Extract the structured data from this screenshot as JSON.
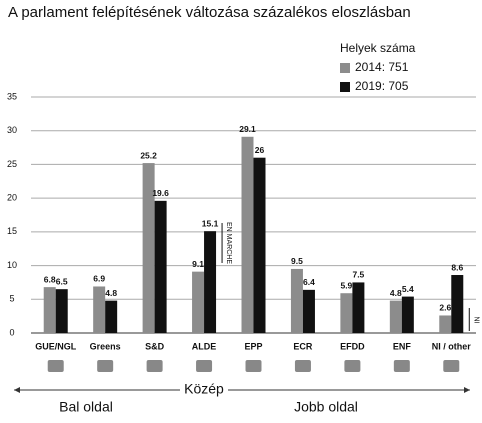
{
  "chart_data": {
    "type": "bar",
    "title": "A parlament felépítésének változása százalékos eloszlásban",
    "legend_title": "Helyek száma",
    "categories": [
      "GUE/NGL",
      "Greens",
      "S&D",
      "ALDE",
      "EPP",
      "ECR",
      "EFDD",
      "ENF",
      "NI / other"
    ],
    "series": [
      {
        "name": "2014: 751",
        "color": "#8c8c8c",
        "values": [
          6.8,
          6.9,
          25.2,
          9.1,
          29.1,
          9.5,
          5.9,
          4.8,
          2.6
        ]
      },
      {
        "name": "2019: 705",
        "color": "#111111",
        "values": [
          6.5,
          4.8,
          19.6,
          15.1,
          26,
          6.4,
          7.5,
          5.4,
          8.6
        ]
      }
    ],
    "ylim": [
      0,
      35
    ],
    "yticks": [
      0,
      5,
      10,
      15,
      20,
      25,
      30,
      35
    ],
    "grid": true,
    "annotations": {
      "en_marche": "EN MARCHE",
      "ni": "NI",
      "center": "Közép",
      "left": "Bal oldal",
      "right": "Jobb oldal"
    }
  }
}
